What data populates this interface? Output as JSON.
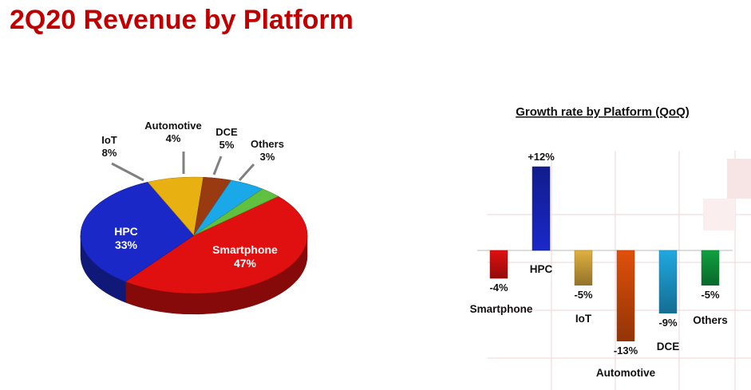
{
  "title": "2Q20 Revenue by Platform",
  "chart_data": [
    {
      "type": "pie",
      "title": "",
      "slices": [
        {
          "label": "Smartphone",
          "value": 47,
          "value_label": "47%",
          "color": "#e01010"
        },
        {
          "label": "HPC",
          "value": 33,
          "value_label": "33%",
          "color": "#1a28c8"
        },
        {
          "label": "IoT",
          "value": 8,
          "value_label": "8%",
          "color": "#e8b010"
        },
        {
          "label": "Automotive",
          "value": 4,
          "value_label": "4%",
          "color": "#9a3a10"
        },
        {
          "label": "DCE",
          "value": 5,
          "value_label": "5%",
          "color": "#1aa8e8"
        },
        {
          "label": "Others",
          "value": 3,
          "value_label": "3%",
          "color": "#60c040"
        }
      ]
    },
    {
      "type": "bar",
      "title": "Growth rate by Platform (QoQ)",
      "categories": [
        "Smartphone",
        "HPC",
        "IoT",
        "Automotive",
        "DCE",
        "Others"
      ],
      "values": [
        -4,
        12,
        -5,
        -13,
        -9,
        -5
      ],
      "value_labels": [
        "-4%",
        "+12%",
        "-5%",
        "-13%",
        "-9%",
        "-5%"
      ],
      "colors": [
        "#e01010",
        "#1a28c8",
        "#e0b040",
        "#e0500a",
        "#20a8e0",
        "#10a040"
      ],
      "xlabel": "",
      "ylabel": "",
      "grid": false
    }
  ]
}
